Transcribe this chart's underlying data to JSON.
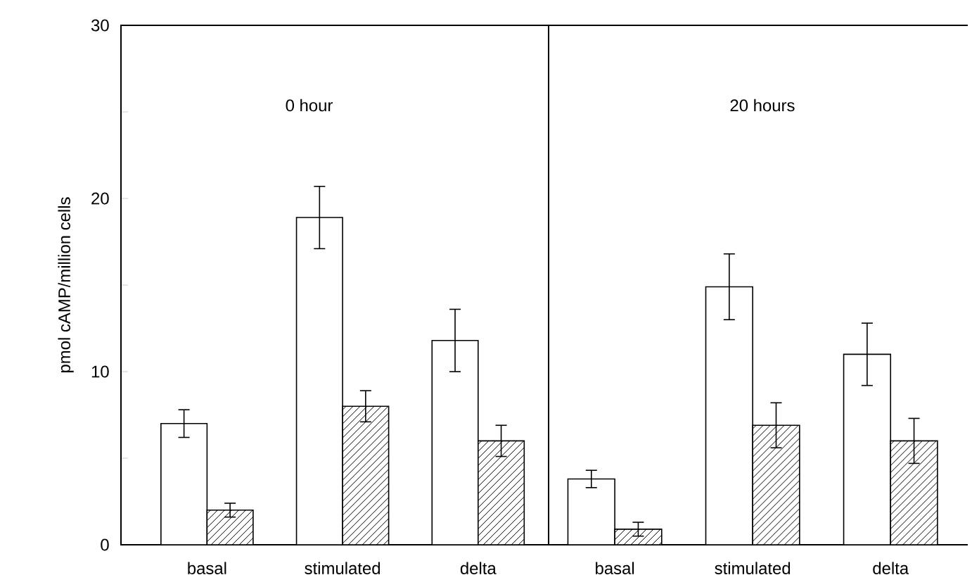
{
  "chart_data": [
    {
      "type": "bar",
      "title": "0 hour",
      "ylabel": "pmol cAMP/million cells",
      "categories": [
        "basal",
        "stimulated",
        "delta"
      ],
      "series": [
        {
          "color": "#ffffff",
          "values": [
            7.0,
            18.9,
            11.8
          ],
          "errors": [
            0.8,
            1.8,
            1.8
          ]
        },
        {
          "color": "#000000",
          "values": [
            2.0,
            8.0,
            6.0
          ],
          "errors": [
            0.4,
            0.9,
            0.9
          ]
        }
      ],
      "ylim": [
        0,
        30
      ],
      "yticks": [
        0,
        {
          "value": 5,
          "label": null
        },
        10,
        {
          "value": 15,
          "label": null
        },
        20,
        {
          "value": 25,
          "label": null
        },
        30
      ]
    },
    {
      "type": "bar",
      "title": "20 hours",
      "categories": [
        "basal",
        "stimulated",
        "delta"
      ],
      "series": [
        {
          "color": "#ffffff",
          "values": [
            3.8,
            14.9,
            11.0
          ],
          "errors": [
            0.5,
            1.9,
            1.8
          ]
        },
        {
          "color": "#000000",
          "values": [
            0.9,
            6.9,
            6.0
          ],
          "errors": [
            0.4,
            1.3,
            1.3
          ]
        }
      ],
      "ylim": [
        0,
        30
      ],
      "tick_labels": "x"
    }
  ]
}
